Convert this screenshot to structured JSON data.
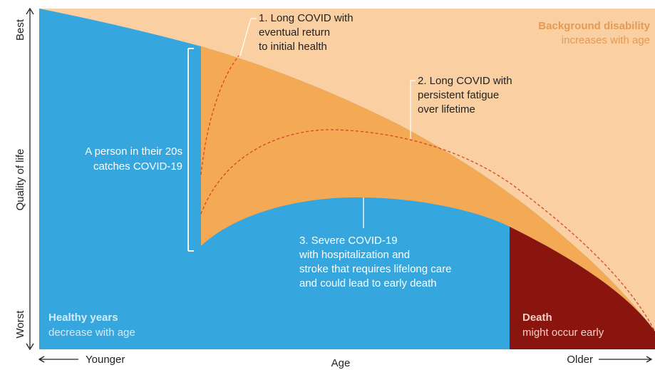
{
  "axes": {
    "y_top": "Best",
    "y_label": "Quality of life",
    "y_bottom": "Worst",
    "x_left": "Younger",
    "x_label": "Age",
    "x_right": "Older"
  },
  "regions": {
    "background": {
      "title": "Background disability",
      "subtitle": "increases with age"
    },
    "healthy": {
      "title": "Healthy years",
      "subtitle": "decrease with age"
    },
    "death": {
      "title": "Death",
      "subtitle": "might occur early"
    }
  },
  "event": [
    "A person in their 20s",
    "catches COVID-19"
  ],
  "scenarios": [
    [
      "1. Long COVID with",
      "eventual return",
      "to initial health"
    ],
    [
      "2. Long COVID with",
      "persistent fatigue",
      "over lifetime"
    ],
    [
      "3. Severe COVID-19",
      "with hospitalization and",
      "stroke that requires lifelong care",
      "and could lead to early death"
    ]
  ]
}
